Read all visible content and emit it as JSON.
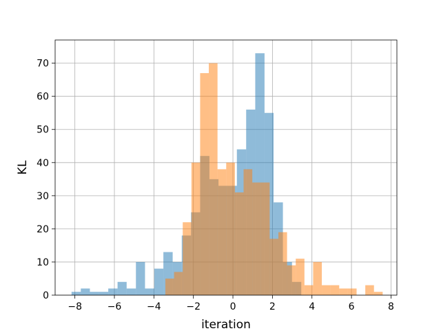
{
  "chart_data": {
    "type": "bar",
    "subtype": "histogram",
    "title": "",
    "xlabel": "iteration",
    "ylabel": "KL",
    "xlim": [
      -9,
      8.3
    ],
    "ylim": [
      0,
      77
    ],
    "xticks": [
      -8,
      -6,
      -4,
      -2,
      0,
      2,
      4,
      6,
      8
    ],
    "xtick_labels": [
      "−8",
      "−6",
      "−4",
      "−2",
      "0",
      "2",
      "4",
      "6",
      "8"
    ],
    "yticks": [
      0,
      10,
      20,
      30,
      40,
      50,
      60,
      70
    ],
    "ytick_labels": [
      "0",
      "10",
      "20",
      "30",
      "40",
      "50",
      "60",
      "70"
    ],
    "grid": true,
    "legend": false,
    "series": [
      {
        "color": "#1f77b4",
        "alpha": 0.5,
        "bin_edges": [
          -8.17,
          -7.7,
          -7.24,
          -6.77,
          -6.31,
          -5.84,
          -5.38,
          -4.91,
          -4.45,
          -3.98,
          -3.52,
          -3.05,
          -2.59,
          -2.12,
          -1.66,
          -1.19,
          -0.73,
          -0.26,
          0.2,
          0.67,
          1.13,
          1.6,
          2.06,
          2.53,
          2.99,
          3.46,
          3.92
        ],
        "counts": [
          1,
          2,
          1,
          1,
          2,
          4,
          2,
          10,
          2,
          8,
          13,
          10,
          18,
          25,
          42,
          35,
          33,
          33,
          44,
          56,
          73,
          55,
          28,
          10,
          4,
          0
        ]
      },
      {
        "color": "#ff7f0e",
        "alpha": 0.5,
        "bin_edges": [
          -3.42,
          -2.98,
          -2.54,
          -2.1,
          -1.66,
          -1.22,
          -0.78,
          -0.34,
          0.1,
          0.54,
          0.98,
          1.42,
          1.86,
          2.3,
          2.74,
          3.18,
          3.62,
          4.06,
          4.5,
          4.94,
          5.38,
          5.82,
          6.26,
          6.7,
          7.14,
          7.58
        ],
        "counts": [
          5,
          7,
          22,
          40,
          67,
          70,
          38,
          40,
          31,
          38,
          34,
          34,
          17,
          19,
          9,
          11,
          3,
          10,
          3,
          3,
          2,
          2,
          0,
          3,
          1
        ]
      }
    ]
  }
}
